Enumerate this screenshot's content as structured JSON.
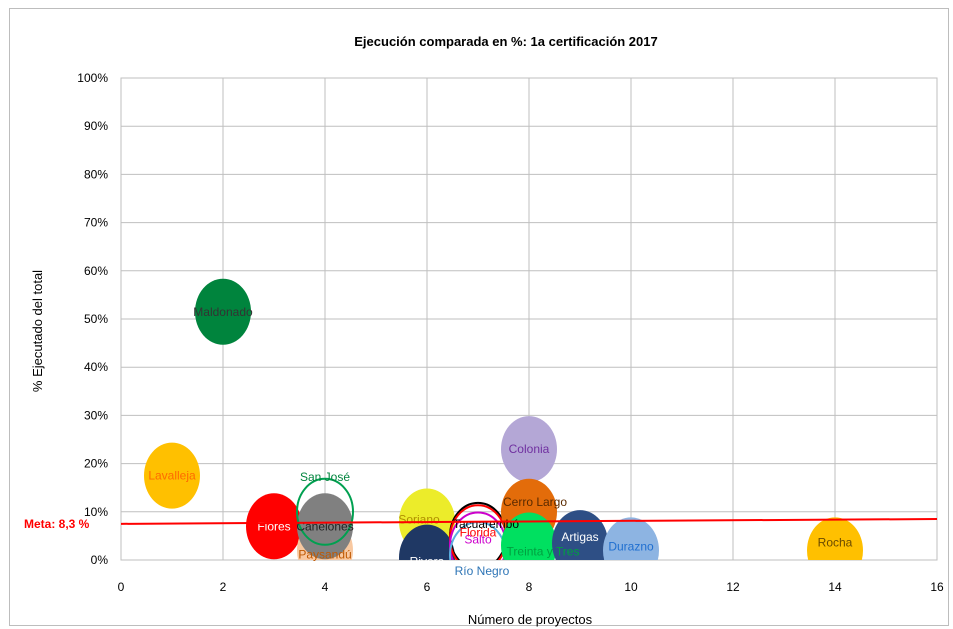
{
  "chart_data": {
    "type": "scatter",
    "title": "Ejecución comparada en %: 1a certificación 2017",
    "xlabel": "Número de proyectos",
    "ylabel": "% Ejecutado del total",
    "xlim": [
      0,
      16
    ],
    "ylim": [
      0,
      100
    ],
    "x_ticks": [
      "0",
      "2",
      "4",
      "6",
      "8",
      "10",
      "12",
      "14",
      "16"
    ],
    "y_ticks": [
      "0%",
      "10%",
      "20%",
      "30%",
      "40%",
      "50%",
      "60%",
      "70%",
      "80%",
      "90%",
      "100%"
    ],
    "grid": "vertical and horizontal",
    "reference_line": {
      "label": "Meta: 8,3 %",
      "y_start": 7.5,
      "y_end": 8.5,
      "color": "#ff0000"
    },
    "points": [
      {
        "name": "Lavalleja",
        "x": 1,
        "y": 17.5,
        "color": "#ffc000",
        "label_color": "#ff6a00",
        "style": "filled"
      },
      {
        "name": "Maldonado",
        "x": 2,
        "y": 51.5,
        "color": "#00843d",
        "label_color": "#333333",
        "style": "filled"
      },
      {
        "name": "Flores",
        "x": 3,
        "y": 7,
        "color": "#ff0000",
        "label_color": "#ffffff",
        "style": "filled"
      },
      {
        "name": "Paysandú",
        "x": 4,
        "y": 2,
        "color": "#f8c8a0",
        "label_color": "#c05800",
        "style": "filled"
      },
      {
        "name": "Canelones",
        "x": 4,
        "y": 7,
        "color": "#808080",
        "label_color": "#222222",
        "style": "filled"
      },
      {
        "name": "San José",
        "x": 4,
        "y": 10,
        "color": "#00a050",
        "label_color": "#00843d",
        "style": "outline"
      },
      {
        "name": "Soriano",
        "x": 6,
        "y": 8,
        "color": "#ecec2a",
        "label_color": "#b09000",
        "style": "filled"
      },
      {
        "name": "Rivera",
        "x": 6,
        "y": 0.5,
        "color": "#1f3864",
        "label_color": "#ffffff",
        "style": "filled"
      },
      {
        "name": "Tacuarembó",
        "x": 7,
        "y": 5,
        "color": "#000000",
        "label_color": "#000000",
        "style": "outline"
      },
      {
        "name": "Florida",
        "x": 7,
        "y": 4.5,
        "color": "#ff0000",
        "label_color": "#ff0000",
        "style": "outline"
      },
      {
        "name": "Salto",
        "x": 7,
        "y": 3,
        "color": "#cc00cc",
        "label_color": "#cc00cc",
        "style": "outline"
      },
      {
        "name": "Río Negro",
        "x": 7,
        "y": 1,
        "color": "#5ab0e0",
        "label_color": "#2e75b6",
        "style": "outline"
      },
      {
        "name": "Colonia",
        "x": 8,
        "y": 23,
        "color": "#b4a7d6",
        "label_color": "#7030a0",
        "style": "filled"
      },
      {
        "name": "Cerro Largo",
        "x": 8,
        "y": 10,
        "color": "#e36c0a",
        "label_color": "#5a2a00",
        "style": "filled"
      },
      {
        "name": "Treinta y Tres",
        "x": 8,
        "y": 3,
        "color": "#00e060",
        "label_color": "#00a040",
        "style": "filled"
      },
      {
        "name": "Artigas",
        "x": 9,
        "y": 3.5,
        "color": "#2e4f85",
        "label_color": "#ffffff",
        "style": "filled"
      },
      {
        "name": "Durazno",
        "x": 10,
        "y": 2,
        "color": "#8db4e2",
        "label_color": "#1f6fd0",
        "style": "filled"
      },
      {
        "name": "Rocha",
        "x": 14,
        "y": 2,
        "color": "#ffc000",
        "label_color": "#6a4a00",
        "style": "filled"
      }
    ]
  }
}
